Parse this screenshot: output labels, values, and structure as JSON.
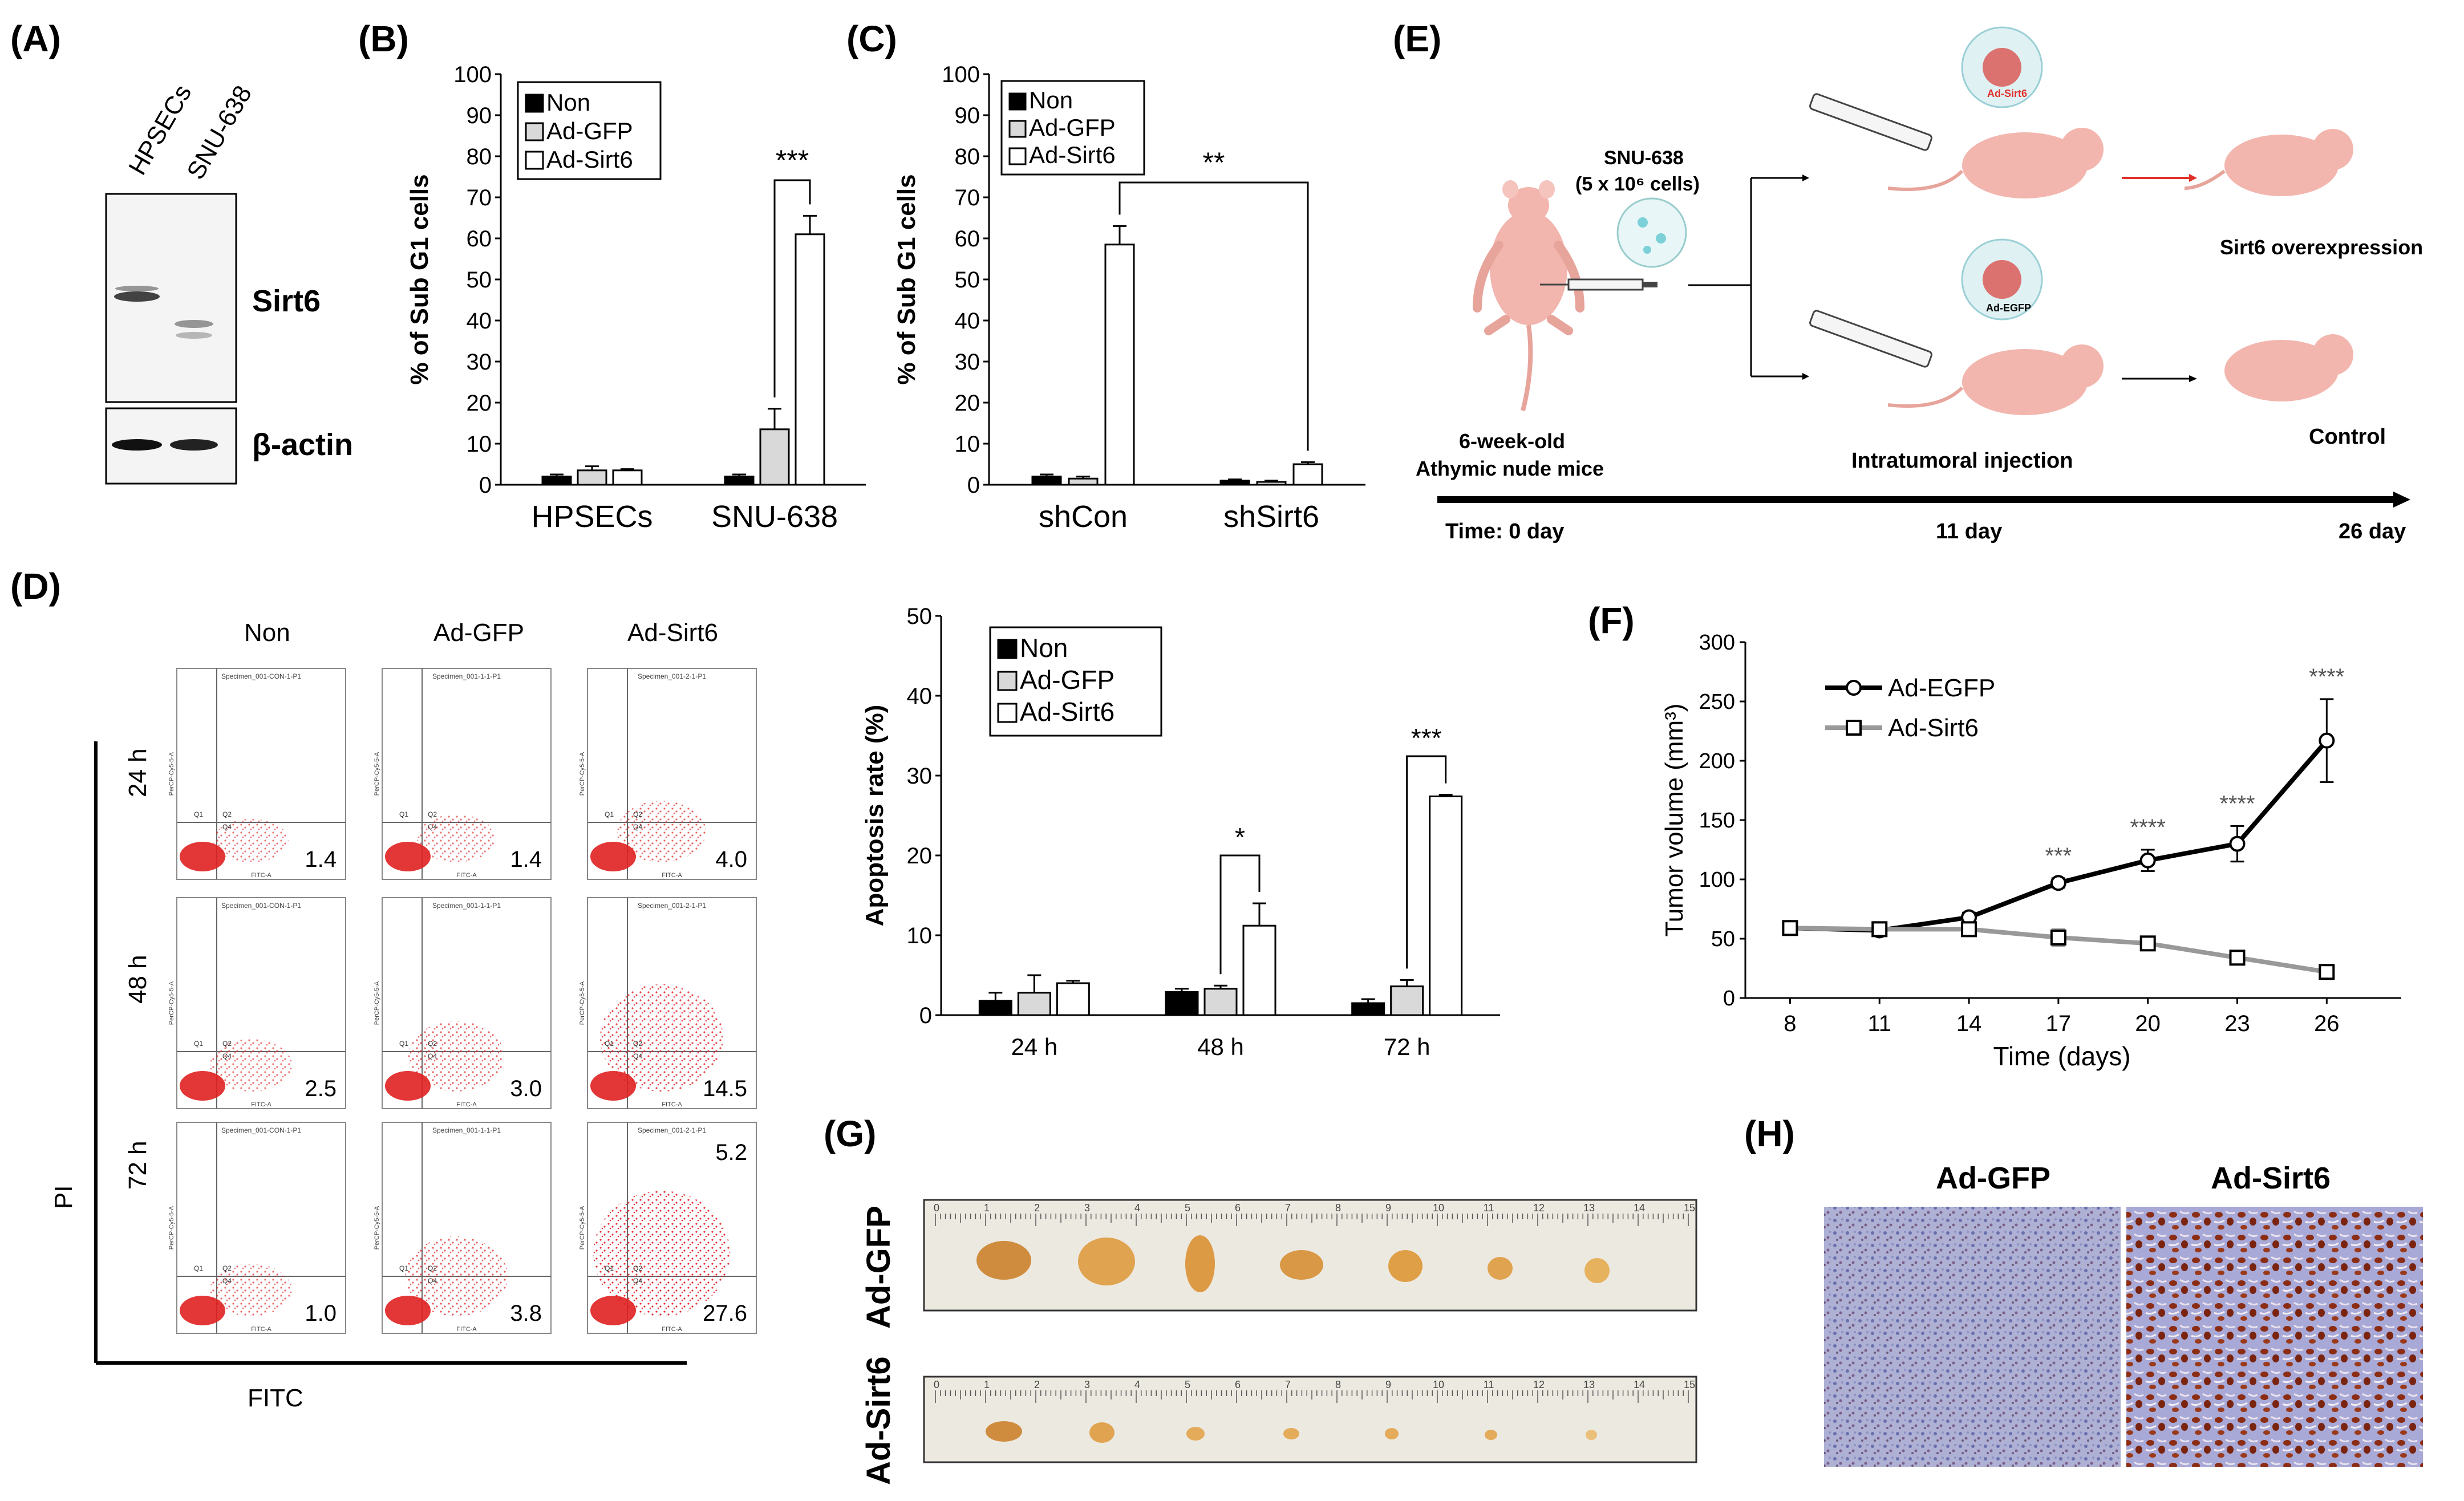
{
  "panel_labels": {
    "A": "(A)",
    "B": "(B)",
    "C": "(C)",
    "D": "(D)",
    "E": "(E)",
    "F": "(F)",
    "G": "(G)",
    "H": "(H)"
  },
  "colors": {
    "non": "#000000",
    "gfp": "#d9d9d9",
    "sirt6": "#ffffff",
    "tissue_blue": "#8a8fc4",
    "tissue_brown": "#8b2c14",
    "tumor": "#d9a25a",
    "ruler": "#eae8e2",
    "mouse": "#f2b6ae",
    "red_arrow": "#e0302a"
  },
  "westernblot": {
    "lanes": [
      "HPSECs",
      "SNU-638"
    ],
    "bands": [
      "Sirt6",
      "β-actin"
    ]
  },
  "chart_data": [
    {
      "id": "B",
      "type": "bar",
      "ylabel": "% of Sub G1 cells",
      "ylim": [
        0,
        100
      ],
      "yticks": [
        0,
        10,
        20,
        30,
        40,
        50,
        60,
        70,
        80,
        90,
        100
      ],
      "categories": [
        "HPSECs",
        "SNU-638"
      ],
      "legend": [
        "Non",
        "Ad-GFP",
        "Ad-Sirt6"
      ],
      "series": [
        {
          "name": "Non",
          "values": [
            2,
            2
          ],
          "errors": [
            0.5,
            0.5
          ]
        },
        {
          "name": "Ad-GFP",
          "values": [
            3.5,
            13.5
          ],
          "errors": [
            1,
            5
          ]
        },
        {
          "name": "Ad-Sirt6",
          "values": [
            3.5,
            61
          ],
          "errors": [
            0.3,
            4.5
          ]
        }
      ],
      "significance": [
        {
          "label": "***",
          "category": 1,
          "series": [
            1,
            2
          ]
        }
      ]
    },
    {
      "id": "C",
      "type": "bar",
      "ylabel": "% of Sub G1 cells",
      "ylim": [
        0,
        100
      ],
      "yticks": [
        0,
        10,
        20,
        30,
        40,
        50,
        60,
        70,
        80,
        90,
        100
      ],
      "categories": [
        "shCon",
        "shSirt6"
      ],
      "legend": [
        "Non",
        "Ad-GFP",
        "Ad-Sirt6"
      ],
      "series": [
        {
          "name": "Non",
          "values": [
            2,
            1
          ],
          "errors": [
            0.5,
            0.3
          ]
        },
        {
          "name": "Ad-GFP",
          "values": [
            1.5,
            0.7
          ],
          "errors": [
            0.5,
            0.3
          ]
        },
        {
          "name": "Ad-Sirt6",
          "values": [
            58.5,
            5
          ],
          "errors": [
            4.5,
            0.5
          ]
        }
      ],
      "significance": [
        {
          "label": "**",
          "between": "Ad-Sirt6"
        }
      ]
    },
    {
      "id": "D-bar",
      "type": "bar",
      "ylabel": "Apoptosis rate (%)",
      "ylim": [
        0,
        50
      ],
      "yticks": [
        0,
        10,
        20,
        30,
        40,
        50
      ],
      "categories": [
        "24 h",
        "48 h",
        "72 h"
      ],
      "legend": [
        "Non",
        "Ad-GFP",
        "Ad-Sirt6"
      ],
      "series": [
        {
          "name": "Non",
          "values": [
            1.8,
            2.9,
            1.5
          ],
          "errors": [
            1,
            0.4,
            0.5
          ]
        },
        {
          "name": "Ad-GFP",
          "values": [
            2.8,
            3.3,
            3.6
          ],
          "errors": [
            2.2,
            0.4,
            0.8
          ]
        },
        {
          "name": "Ad-Sirt6",
          "values": [
            4.0,
            11.2,
            27.4
          ],
          "errors": [
            0.3,
            2.8,
            0.2
          ]
        }
      ],
      "significance": [
        {
          "label": "*",
          "category": 1,
          "series": [
            1,
            2
          ]
        },
        {
          "label": "***",
          "category": 2,
          "series": [
            1,
            2
          ]
        }
      ]
    },
    {
      "id": "F",
      "type": "line",
      "xlabel": "Time (days)",
      "ylabel": "Tumor volume (mm³)",
      "x": [
        8,
        11,
        14,
        17,
        20,
        23,
        26
      ],
      "ylim": [
        0,
        300
      ],
      "yticks": [
        0,
        50,
        100,
        150,
        200,
        250,
        300
      ],
      "series": [
        {
          "name": "Ad-EGFP",
          "values": [
            59,
            57,
            68,
            97,
            116,
            130,
            217
          ],
          "errors": [
            5,
            2,
            4,
            4,
            9,
            15,
            35
          ]
        },
        {
          "name": "Ad-Sirt6",
          "values": [
            59,
            58,
            58,
            51,
            46,
            34,
            22
          ],
          "errors": [
            5,
            2,
            2,
            7,
            3,
            5,
            4
          ]
        }
      ],
      "significance": [
        {
          "x": 17,
          "label": "***"
        },
        {
          "x": 20,
          "label": "****"
        },
        {
          "x": 23,
          "label": "****"
        },
        {
          "x": 26,
          "label": "****"
        }
      ]
    }
  ],
  "flow": {
    "columns": [
      "Non",
      "Ad-GFP",
      "Ad-Sirt6"
    ],
    "rows": [
      "24 h",
      "48 h",
      "72 h"
    ],
    "values": [
      [
        "1.4",
        "1.4",
        "4.0"
      ],
      [
        "2.5",
        "3.0",
        "14.5"
      ],
      [
        "1.0",
        "3.8",
        "27.6"
      ]
    ],
    "extra": "5.2",
    "xlabel": "FITC",
    "ylabel": "PI",
    "specimen_labels": [
      [
        "Specimen_001-CON-1-P1",
        "Specimen_001-1-1-P1",
        "Specimen_001-2-1-P1"
      ],
      [
        "Specimen_001-CON-1-P1",
        "Specimen_001-1-1-P1",
        "Specimen_001-2-1-P1"
      ],
      [
        "Specimen_001-CON-1-P1",
        "Specimen_001-1-1-P1",
        "Specimen_001-2-1-P1"
      ]
    ],
    "quadrants": [
      "Q1",
      "Q2",
      "Q4"
    ],
    "axis_small_x": "FITC-A",
    "axis_small_y": "PerCP-Cy5-5-A"
  },
  "schematic": {
    "cell_line": "SNU-638",
    "cells": "(5 x 10⁶ cells)",
    "mice": [
      "6-week-old",
      "Athymic nude mice"
    ],
    "injection": "Intratumoral injection",
    "virus_top": "Ad-Sirt6",
    "virus_bottom": "Ad-EGFP",
    "outcome_top": "Sirt6 overexpression",
    "outcome_bottom": "Control",
    "timeline": [
      "Time: 0 day",
      "11 day",
      "26 day"
    ]
  },
  "tumors": {
    "rows": [
      "Ad-GFP",
      "Ad-Sirt6"
    ],
    "ruler_numbers": [
      "0",
      "1",
      "2",
      "3",
      "4",
      "5",
      "6",
      "7",
      "8",
      "9",
      "10",
      "11",
      "12",
      "13",
      "14",
      "15"
    ]
  },
  "ihc": {
    "labels": [
      "Ad-GFP",
      "Ad-Sirt6"
    ]
  }
}
